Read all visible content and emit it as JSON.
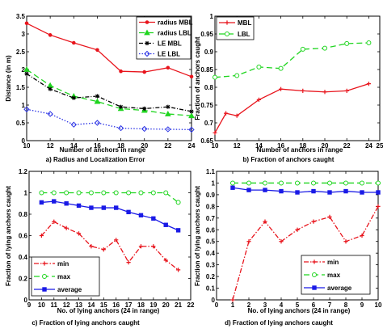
{
  "chart_data": [
    {
      "id": "a",
      "type": "line",
      "caption": "a) Radius and Localization Error",
      "xlabel": "Number of anchors in range",
      "ylabel": "Distance (in m)",
      "xlim": [
        10,
        24
      ],
      "ylim": [
        0,
        3.5
      ],
      "xticks": [
        10,
        12,
        14,
        16,
        18,
        20,
        22,
        24
      ],
      "yticks": [
        0,
        0.5,
        1,
        1.5,
        2,
        2.5,
        3,
        3.5
      ],
      "ytick_labels": [
        "0",
        "0.5",
        "1",
        "1.5",
        "2",
        "2.5",
        "3",
        "3.5"
      ],
      "legend": "top-right",
      "grid": false,
      "x": [
        10,
        12,
        14,
        16,
        18,
        20,
        22,
        24
      ],
      "series": [
        {
          "name": "radius MBL",
          "color": "#e8141c",
          "dash": "",
          "marker": "dot",
          "values": [
            3.3,
            2.97,
            2.75,
            2.55,
            1.95,
            1.93,
            2.05,
            1.8
          ]
        },
        {
          "name": "radius LBL",
          "color": "#1fd51f",
          "dash": "7 4",
          "marker": "tri",
          "values": [
            2.0,
            1.55,
            1.25,
            1.1,
            0.9,
            0.85,
            0.75,
            0.7
          ]
        },
        {
          "name": "LE MBL",
          "color": "#000000",
          "dash": "5 2 1 2",
          "marker": "star",
          "values": [
            1.88,
            1.45,
            1.2,
            1.25,
            0.95,
            0.9,
            0.95,
            0.82
          ]
        },
        {
          "name": "LE LBL",
          "color": "#2d35e5",
          "dash": "1.5 2",
          "marker": "diamond",
          "values": [
            0.88,
            0.75,
            0.45,
            0.5,
            0.35,
            0.33,
            0.32,
            0.31
          ]
        }
      ]
    },
    {
      "id": "b",
      "type": "line",
      "caption": "b) Fraction of anchors caught",
      "xlabel": "Number of anchors in range",
      "ylabel": "Fraction of anchors caught",
      "xlim": [
        10,
        25
      ],
      "ylim": [
        0.65,
        1.0
      ],
      "xticks": [
        10,
        12,
        14,
        16,
        18,
        20,
        22,
        24,
        25
      ],
      "yticks": [
        0.65,
        0.7,
        0.75,
        0.8,
        0.85,
        0.9,
        0.95,
        1
      ],
      "ytick_labels": [
        "0.65",
        "0.7",
        "0.75",
        "0.8",
        "0.85",
        "0.9",
        "0.95",
        "1"
      ],
      "legend": "top-left",
      "grid": false,
      "x": [
        10,
        11,
        12,
        14,
        16,
        18,
        22,
        24
      ],
      "series": [
        {
          "name": "MBL",
          "color": "#e8141c",
          "dash": "",
          "marker": "plus",
          "x": [
            10,
            11,
            12,
            14,
            16,
            18,
            20,
            22,
            24
          ],
          "values": [
            0.672,
            0.727,
            0.72,
            0.765,
            0.795,
            0.79,
            0.787,
            0.79,
            0.81
          ]
        },
        {
          "name": "LBL",
          "color": "#1fd51f",
          "dash": "7 4",
          "marker": "circle",
          "x": [
            10,
            12,
            14,
            16,
            18,
            20,
            22,
            24
          ],
          "values": [
            0.828,
            0.833,
            0.857,
            0.853,
            0.907,
            0.91,
            0.923,
            0.925
          ]
        }
      ]
    },
    {
      "id": "c",
      "type": "line",
      "caption": "c) Fraction of lying anchors caught",
      "xlabel": "No. of lying anchors (24 in range)",
      "ylabel": "Fraction of lying anchors caught",
      "xlim": [
        9,
        22
      ],
      "ylim": [
        0,
        1.2
      ],
      "xticks": [
        9,
        10,
        11,
        12,
        13,
        14,
        15,
        16,
        17,
        18,
        19,
        20,
        21,
        22
      ],
      "yticks": [
        0,
        0.2,
        0.4,
        0.6,
        0.8,
        1,
        1.2
      ],
      "ytick_labels": [
        "0",
        "0.2",
        "0.4",
        "0.6",
        "0.8",
        "1",
        "1.2"
      ],
      "legend": "bottom-left",
      "grid": false,
      "x": [
        10,
        11,
        12,
        13,
        14,
        15,
        16,
        17,
        18,
        19,
        20,
        21
      ],
      "series": [
        {
          "name": "min",
          "color": "#e8141c",
          "dash": "6 2 1.5 2",
          "marker": "plus",
          "values": [
            0.6,
            0.73,
            0.67,
            0.62,
            0.5,
            0.47,
            0.56,
            0.35,
            0.5,
            0.5,
            0.37,
            0.28
          ]
        },
        {
          "name": "max",
          "color": "#1fd51f",
          "dash": "7 4",
          "marker": "circle",
          "values": [
            1.0,
            1.0,
            1.0,
            1.0,
            1.0,
            1.0,
            1.0,
            1.0,
            1.0,
            1.0,
            1.0,
            0.91
          ]
        },
        {
          "name": "average",
          "color": "#1a1ae6",
          "dash": "",
          "marker": "square",
          "values": [
            0.91,
            0.92,
            0.9,
            0.88,
            0.86,
            0.86,
            0.86,
            0.82,
            0.79,
            0.76,
            0.7,
            0.65
          ]
        }
      ]
    },
    {
      "id": "d",
      "type": "line",
      "caption": "d) Fraction of lying anchors caught",
      "xlabel": "No. of lying anchors (24 in range)",
      "ylabel": "Fraction of lying anchors caught",
      "xlim": [
        0,
        10
      ],
      "ylim": [
        0,
        1.1
      ],
      "xticks": [
        0,
        1,
        2,
        3,
        4,
        5,
        6,
        7,
        8,
        9,
        10
      ],
      "yticks": [
        0,
        0.1,
        0.2,
        0.3,
        0.4,
        0.5,
        0.6,
        0.7,
        0.8,
        0.9,
        1,
        1.1
      ],
      "ytick_labels": [
        "0",
        "0.1",
        "0.2",
        "0.3",
        "0.4",
        "0.5",
        "0.6",
        "0.7",
        "0.8",
        "0.9",
        "1",
        "1.1"
      ],
      "legend": "bottom-right",
      "grid": false,
      "x": [
        1,
        2,
        3,
        4,
        5,
        6,
        7,
        8,
        9,
        10
      ],
      "series": [
        {
          "name": "min",
          "color": "#e8141c",
          "dash": "6 2 1.5 2",
          "marker": "plus",
          "values": [
            0.0,
            0.5,
            0.67,
            0.5,
            0.6,
            0.67,
            0.71,
            0.5,
            0.55,
            0.8
          ]
        },
        {
          "name": "max",
          "color": "#1fd51f",
          "dash": "7 4",
          "marker": "circle",
          "values": [
            1.0,
            1.0,
            1.0,
            1.0,
            1.0,
            1.0,
            1.0,
            1.0,
            1.0,
            1.0
          ]
        },
        {
          "name": "average",
          "color": "#1a1ae6",
          "dash": "",
          "marker": "square",
          "values": [
            0.96,
            0.94,
            0.94,
            0.93,
            0.92,
            0.93,
            0.92,
            0.93,
            0.92,
            0.92
          ]
        }
      ]
    }
  ]
}
